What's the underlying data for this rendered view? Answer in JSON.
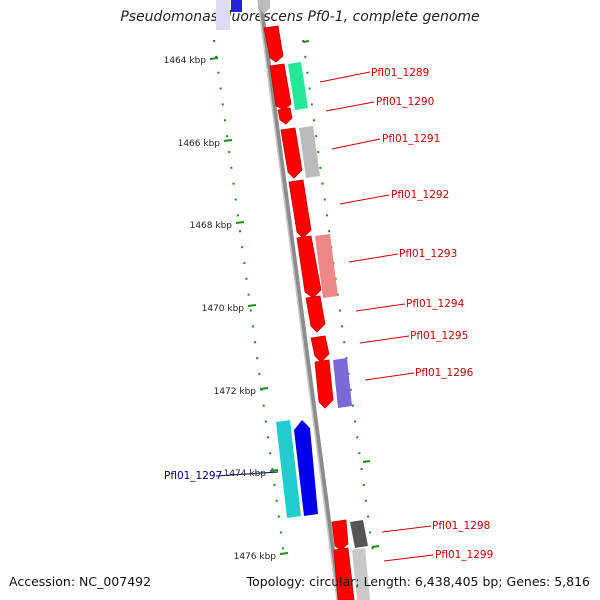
{
  "title": "Pseudomonas fluorescens Pf0-1, complete genome",
  "accession_text": "Accession: NC_007492",
  "summary_text": "Topology: circular; Length: 6,438,405 bp; Genes: 5,816",
  "kbp_labels": [
    "1464 kbp",
    "1466 kbp",
    "1468 kbp",
    "1470 kbp",
    "1472 kbp",
    "1474 kbp",
    "1476 kbp"
  ],
  "genes": [
    {
      "id": "Pfl01_1289",
      "label_color": "#cc0000",
      "feature_color": "#00ee88"
    },
    {
      "id": "Pfl01_1290",
      "label_color": "#cc0000",
      "feature_color": "#ff0000"
    },
    {
      "id": "Pfl01_1291",
      "label_color": "#cc0000",
      "feature_color": "#b8b8b8"
    },
    {
      "id": "Pfl01_1292",
      "label_color": "#cc0000",
      "feature_color": "#ff0000"
    },
    {
      "id": "Pfl01_1293",
      "label_color": "#cc0000",
      "feature_color": "#ee8080"
    },
    {
      "id": "Pfl01_1294",
      "label_color": "#cc0000",
      "feature_color": "#ff0000"
    },
    {
      "id": "Pfl01_1295",
      "label_color": "#cc0000",
      "feature_color": "#ff0000"
    },
    {
      "id": "Pfl01_1296",
      "label_color": "#cc0000",
      "feature_color": "#7766dd"
    },
    {
      "id": "Pfl01_1297",
      "label_color": "#000080",
      "feature_color": "#0000ee"
    },
    {
      "id": "Pfl01_1298",
      "label_color": "#cc0000",
      "feature_color": "#ff0000"
    },
    {
      "id": "Pfl01_1299",
      "label_color": "#cc0000",
      "feature_color": "#ff0000"
    }
  ]
}
